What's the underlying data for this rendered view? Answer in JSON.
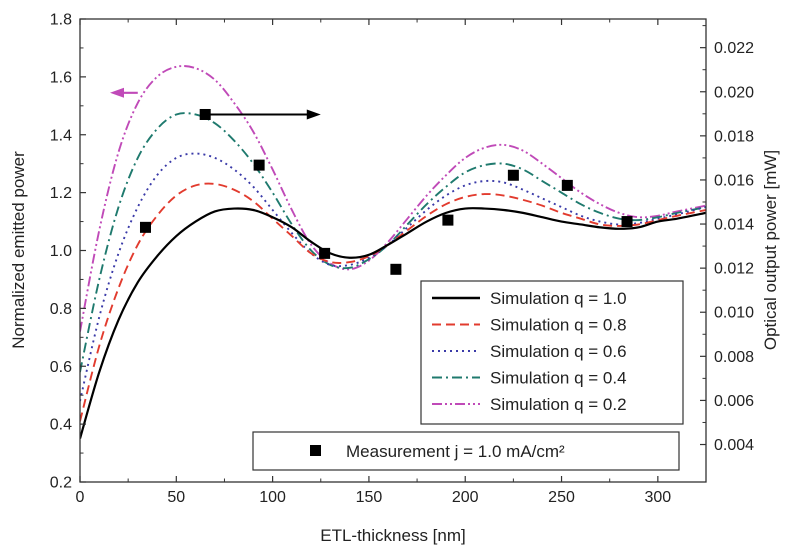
{
  "chart_data": {
    "type": "line",
    "xlabel": "ETL-thickness [nm]",
    "ylabel": "Normalized emitted power",
    "y2label": "Optical output power [mW]",
    "xlim": [
      0,
      325
    ],
    "ylim": [
      0.2,
      1.8
    ],
    "y2lim": [
      0.0023,
      0.0233
    ],
    "xticks": [
      "0",
      "50",
      "100",
      "150",
      "200",
      "250",
      "300"
    ],
    "yticks": [
      "0.2",
      "0.4",
      "0.6",
      "0.8",
      "1.0",
      "1.2",
      "1.4",
      "1.6",
      "1.8"
    ],
    "y2ticks": [
      "0.004",
      "0.006",
      "0.008",
      "0.010",
      "0.012",
      "0.014",
      "0.016",
      "0.018",
      "0.020",
      "0.022"
    ],
    "legend_placement": "bottom-right",
    "series": [
      {
        "name": "Simulation q = 1.0",
        "color": "#000000",
        "dash": "solid",
        "x": [
          0,
          10,
          20,
          30,
          40,
          50,
          60,
          70,
          80,
          90,
          100,
          110,
          120,
          130,
          140,
          150,
          160,
          170,
          180,
          190,
          200,
          210,
          220,
          230,
          240,
          250,
          260,
          270,
          280,
          290,
          300,
          310,
          325
        ],
        "values": [
          0.35,
          0.58,
          0.76,
          0.89,
          0.98,
          1.05,
          1.1,
          1.135,
          1.145,
          1.14,
          1.115,
          1.08,
          1.03,
          0.99,
          0.975,
          0.985,
          1.02,
          1.06,
          1.1,
          1.13,
          1.145,
          1.145,
          1.14,
          1.13,
          1.115,
          1.1,
          1.09,
          1.08,
          1.075,
          1.08,
          1.1,
          1.11,
          1.13
        ]
      },
      {
        "name": "Simulation q = 0.8",
        "color": "#e23b2e",
        "dash": "dash",
        "x": [
          0,
          10,
          20,
          30,
          40,
          50,
          60,
          70,
          80,
          90,
          100,
          110,
          120,
          130,
          140,
          150,
          160,
          170,
          180,
          190,
          200,
          210,
          220,
          230,
          240,
          250,
          260,
          270,
          280,
          290,
          300,
          310,
          325
        ],
        "values": [
          0.41,
          0.67,
          0.87,
          1.02,
          1.12,
          1.19,
          1.225,
          1.23,
          1.21,
          1.17,
          1.11,
          1.05,
          0.99,
          0.96,
          0.96,
          0.98,
          1.02,
          1.07,
          1.12,
          1.16,
          1.185,
          1.195,
          1.19,
          1.175,
          1.155,
          1.13,
          1.11,
          1.09,
          1.085,
          1.09,
          1.105,
          1.12,
          1.14
        ]
      },
      {
        "name": "Simulation q = 0.6",
        "color": "#3a3aa8",
        "dash": "dot",
        "x": [
          0,
          10,
          20,
          30,
          40,
          50,
          60,
          70,
          80,
          90,
          100,
          110,
          120,
          130,
          140,
          150,
          160,
          170,
          180,
          190,
          200,
          210,
          220,
          230,
          240,
          250,
          260,
          270,
          280,
          290,
          300,
          310,
          325
        ],
        "values": [
          0.48,
          0.77,
          0.99,
          1.15,
          1.26,
          1.32,
          1.335,
          1.32,
          1.28,
          1.22,
          1.14,
          1.06,
          0.99,
          0.95,
          0.95,
          0.975,
          1.02,
          1.08,
          1.14,
          1.19,
          1.225,
          1.24,
          1.235,
          1.21,
          1.18,
          1.15,
          1.12,
          1.1,
          1.09,
          1.095,
          1.11,
          1.125,
          1.15
        ]
      },
      {
        "name": "Simulation q = 0.4",
        "color": "#1f7a6e",
        "dash": "dashdot",
        "x": [
          0,
          10,
          20,
          30,
          40,
          50,
          60,
          70,
          80,
          90,
          100,
          110,
          120,
          130,
          140,
          150,
          160,
          170,
          180,
          190,
          200,
          210,
          220,
          230,
          240,
          250,
          260,
          270,
          280,
          290,
          300,
          310,
          325
        ],
        "values": [
          0.58,
          0.9,
          1.15,
          1.32,
          1.42,
          1.47,
          1.47,
          1.44,
          1.38,
          1.3,
          1.2,
          1.09,
          1.0,
          0.95,
          0.94,
          0.97,
          1.02,
          1.09,
          1.16,
          1.22,
          1.27,
          1.295,
          1.3,
          1.28,
          1.24,
          1.2,
          1.16,
          1.13,
          1.11,
          1.105,
          1.115,
          1.13,
          1.15
        ]
      },
      {
        "name": "Simulation q = 0.2",
        "color": "#c04ab8",
        "dash": "dashdotdot",
        "x": [
          0,
          10,
          20,
          30,
          40,
          50,
          60,
          70,
          80,
          90,
          100,
          110,
          120,
          130,
          140,
          150,
          160,
          170,
          180,
          190,
          200,
          210,
          220,
          230,
          240,
          250,
          260,
          270,
          280,
          290,
          300,
          310,
          325
        ],
        "values": [
          0.72,
          1.07,
          1.34,
          1.51,
          1.6,
          1.635,
          1.63,
          1.59,
          1.51,
          1.41,
          1.28,
          1.14,
          1.02,
          0.955,
          0.935,
          0.965,
          1.03,
          1.11,
          1.19,
          1.26,
          1.32,
          1.355,
          1.365,
          1.345,
          1.3,
          1.25,
          1.2,
          1.16,
          1.13,
          1.115,
          1.12,
          1.135,
          1.155
        ]
      }
    ],
    "scatter": {
      "name": "Measurement j = 1.0 mA/cm²",
      "color": "#000000",
      "x": [
        34,
        65,
        93,
        127,
        164,
        191,
        225,
        253,
        284
      ],
      "values": [
        1.08,
        1.47,
        1.295,
        0.99,
        0.935,
        1.105,
        1.26,
        1.225,
        1.1
      ]
    },
    "annotations": [
      {
        "type": "arrow",
        "direction": "left",
        "color": "#c04ab8",
        "points_to": "left axis"
      },
      {
        "type": "arrow",
        "direction": "right",
        "color": "#000000",
        "points_to": "right axis"
      }
    ]
  }
}
